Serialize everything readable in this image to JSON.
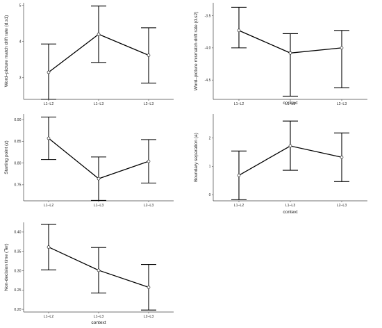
{
  "chart_data": [
    {
      "type": "line",
      "xlabel": "",
      "ylabel": "Word–picture match drift rate (d.s1)",
      "categories": [
        "L1–L2",
        "L1–L3",
        "L2–L3"
      ],
      "series": [
        {
          "values": [
            3.15,
            4.2,
            3.62
          ],
          "lower": [
            2.4,
            3.42,
            2.85
          ],
          "upper": [
            3.93,
            4.98,
            4.38
          ]
        }
      ],
      "ylim": [
        2.4,
        5.07
      ],
      "yticks": [
        3,
        4,
        5
      ],
      "ytick_labels": [
        "3",
        "4",
        "5"
      ]
    },
    {
      "type": "line",
      "xlabel": "context",
      "ylabel": "Word–picture mismatch drift rate (d.s2)",
      "categories": [
        "L1–L2",
        "L1–L3",
        "L2–L3"
      ],
      "series": [
        {
          "values": [
            -3.73,
            -4.08,
            -4.0
          ],
          "lower": [
            -4.0,
            -4.75,
            -4.62
          ],
          "upper": [
            -3.37,
            -3.78,
            -3.73
          ]
        }
      ],
      "ylim": [
        -4.8,
        -3.3
      ],
      "yticks": [
        -3.5,
        -4.0,
        -4.5
      ],
      "ytick_labels": [
        "-3.5",
        "-4.0",
        "-4.5"
      ]
    },
    {
      "type": "line",
      "xlabel": "",
      "ylabel": "Starting point (z)",
      "categories": [
        "L1–L2",
        "L1–L3",
        "L2–L3"
      ],
      "series": [
        {
          "values": [
            0.857,
            0.764,
            0.804
          ],
          "lower": [
            0.808,
            0.714,
            0.754
          ],
          "upper": [
            0.906,
            0.814,
            0.854
          ]
        }
      ],
      "ylim": [
        0.713,
        0.913
      ],
      "yticks": [
        0.75,
        0.8,
        0.85,
        0.9
      ],
      "ytick_labels": [
        "0.75",
        "0.80",
        "0.85",
        "0.90"
      ]
    },
    {
      "type": "line",
      "xlabel": "context",
      "ylabel": "Boundary separation (a)",
      "categories": [
        "L1–L2",
        "L1–L3",
        "L2–L3"
      ],
      "series": [
        {
          "values": [
            0.68,
            1.72,
            1.32
          ],
          "lower": [
            -0.18,
            0.86,
            0.46
          ],
          "upper": [
            1.54,
            2.6,
            2.18
          ]
        }
      ],
      "ylim": [
        -0.22,
        2.85
      ],
      "yticks": [
        0,
        1,
        2
      ],
      "ytick_labels": [
        "0",
        "1",
        "2"
      ]
    },
    {
      "type": "line",
      "xlabel": "context",
      "ylabel": "Non-decision time (Ter)",
      "categories": [
        "L1–L2",
        "L1–L3",
        "L2–L3"
      ],
      "series": [
        {
          "values": [
            0.361,
            0.301,
            0.257
          ],
          "lower": [
            0.302,
            0.242,
            0.198
          ],
          "upper": [
            0.42,
            0.36,
            0.316
          ]
        }
      ],
      "ylim": [
        0.193,
        0.425
      ],
      "yticks": [
        0.2,
        0.25,
        0.3,
        0.35,
        0.4
      ],
      "ytick_labels": [
        "0.20",
        "0.25",
        "0.30",
        "0.35",
        "0.40"
      ]
    }
  ]
}
